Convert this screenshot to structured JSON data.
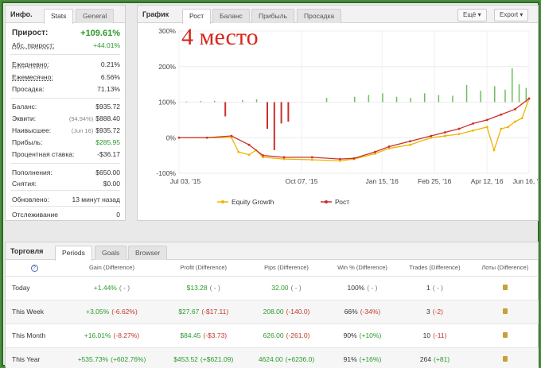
{
  "info": {
    "title": "Инфо.",
    "tabs": [
      "Stats",
      "General"
    ],
    "active_tab": "Stats",
    "rows": [
      {
        "label": "Прирост:",
        "value": "+109.61%",
        "style": "big-green",
        "underline": false
      },
      {
        "label": "Абс. прирост:",
        "value": "+44.01%",
        "style": "green",
        "underline": true
      },
      {
        "label": "Ежедневно:",
        "value": "0.21%",
        "style": "",
        "underline": true
      },
      {
        "label": "Ежемесячно:",
        "value": "6.56%",
        "style": "",
        "underline": true
      },
      {
        "label": "Просадка:",
        "value": "71.13%",
        "style": "",
        "underline": false
      },
      {
        "label": "Баланс:",
        "value": "$935.72",
        "style": "",
        "underline": false
      },
      {
        "label": "Эквити:",
        "value": "$888.40",
        "note": "(94.94%)",
        "style": "",
        "underline": false
      },
      {
        "label": "Наивысшее:",
        "value": "$935.72",
        "note": "(Jun 16)",
        "style": "",
        "underline": false
      },
      {
        "label": "Прибыль:",
        "value": "$285.95",
        "style": "green",
        "underline": false
      },
      {
        "label": "Процентная ставка:",
        "value": "-$36.17",
        "style": "",
        "underline": false
      },
      {
        "label": "Пополнения:",
        "value": "$650.00",
        "style": "",
        "underline": false
      },
      {
        "label": "Снятия:",
        "value": "$0.00",
        "style": "",
        "underline": false
      },
      {
        "label": "Обновлено:",
        "value": "13 минут назад",
        "style": "",
        "underline": false
      },
      {
        "label": "Отслеживание",
        "value": "0",
        "style": "",
        "underline": false
      }
    ]
  },
  "chart_panel": {
    "title": "График",
    "tabs": [
      "Рост",
      "Баланс",
      "Прибыль",
      "Просадка"
    ],
    "active_tab": "Рост",
    "menu_button": "Ещё",
    "export_button": "Export",
    "overlay_text": "4 место",
    "overlay_color": "#d9251c"
  },
  "chart_data": {
    "type": "line",
    "y_ticks": [
      "300%",
      "200%",
      "100%",
      "0%",
      "-100%"
    ],
    "y_tick_values": [
      300,
      200,
      100,
      0,
      -100
    ],
    "ylim": [
      -100,
      300
    ],
    "x_ticks": [
      "Jul 03, '15",
      "Oct 07, '15",
      "Jan 15, '16",
      "Feb 25, '16",
      "Apr 12, '16",
      "Jun 16, '16"
    ],
    "x_tick_positions": [
      0,
      0.35,
      0.58,
      0.73,
      0.88,
      1.0
    ],
    "series": [
      {
        "name": "Equity Growth",
        "color": "#f0b400",
        "x": [
          0,
          0.08,
          0.15,
          0.17,
          0.2,
          0.22,
          0.24,
          0.3,
          0.38,
          0.46,
          0.5,
          0.56,
          0.6,
          0.66,
          0.72,
          0.76,
          0.8,
          0.84,
          0.88,
          0.9,
          0.92,
          0.94,
          0.96,
          0.98,
          1.0
        ],
        "y": [
          0,
          0,
          0,
          -40,
          -48,
          -35,
          -55,
          -60,
          -62,
          -65,
          -60,
          -45,
          -30,
          -20,
          0,
          5,
          10,
          20,
          30,
          -35,
          25,
          30,
          45,
          55,
          110
        ]
      },
      {
        "name": "Рост",
        "color": "#c9302c",
        "x": [
          0,
          0.08,
          0.15,
          0.2,
          0.24,
          0.3,
          0.38,
          0.46,
          0.5,
          0.56,
          0.6,
          0.66,
          0.72,
          0.76,
          0.8,
          0.84,
          0.88,
          0.92,
          0.96,
          1.0
        ],
        "y": [
          0,
          0,
          5,
          -20,
          -50,
          -55,
          -55,
          -60,
          -58,
          -40,
          -25,
          -10,
          5,
          15,
          25,
          40,
          50,
          65,
          80,
          110
        ]
      },
      {
        "name": "daily-bars",
        "color": "#6cbf5c",
        "x": [
          0.02,
          0.06,
          0.1,
          0.18,
          0.22,
          0.42,
          0.5,
          0.54,
          0.58,
          0.62,
          0.66,
          0.7,
          0.74,
          0.78,
          0.82,
          0.86,
          0.9,
          0.93,
          0.95,
          0.97,
          0.99
        ],
        "y": [
          102,
          103,
          104,
          106,
          108,
          112,
          115,
          120,
          125,
          115,
          112,
          125,
          120,
          118,
          148,
          132,
          145,
          135,
          195,
          150,
          140
        ]
      }
    ],
    "neg_bars": {
      "color": "#c9302c",
      "x": [
        0.13,
        0.25,
        0.27,
        0.29,
        0.31
      ],
      "y": [
        60,
        25,
        -35,
        40,
        45
      ]
    }
  },
  "trade": {
    "title": "Торговля",
    "tabs": [
      "Periods",
      "Goals",
      "Browser"
    ],
    "active_tab": "Periods",
    "columns": [
      "Gain (Difference)",
      "Profit (Difference)",
      "Pips (Difference)",
      "Win % (Difference)",
      "Trades (Difference)",
      "Лоты (Difference)"
    ],
    "rows": [
      {
        "period": "Today",
        "gain": "+1.44%",
        "gain_diff": "( - )",
        "profit": "$13.28",
        "profit_diff": "( - )",
        "pips": "32.00",
        "pips_diff": "( - )",
        "win": "100%",
        "win_diff": "( - )",
        "trades": "1",
        "trades_diff": "( - )"
      },
      {
        "period": "This Week",
        "gain": "+3.05%",
        "gain_diff": "(-6.62%)",
        "profit": "$27.67",
        "profit_diff": "(-$17.11)",
        "pips": "208.00",
        "pips_diff": "(-140.0)",
        "win": "66%",
        "win_diff": "(-34%)",
        "trades": "3",
        "trades_diff": "(-2)"
      },
      {
        "period": "This Month",
        "gain": "+16.01%",
        "gain_diff": "(-8.27%)",
        "profit": "$84.45",
        "profit_diff": "(-$3.73)",
        "pips": "626.00",
        "pips_diff": "(-261.0)",
        "win": "90%",
        "win_diff": "(+10%)",
        "trades": "10",
        "trades_diff": "(-11)"
      },
      {
        "period": "This Year",
        "gain": "+535.73%",
        "gain_diff": "(+602.76%)",
        "profit": "$453.52",
        "profit_diff": "(+$621.09)",
        "pips": "4624.00",
        "pips_diff": "(+6236.0)",
        "win": "91%",
        "win_diff": "(+16%)",
        "trades": "264",
        "trades_diff": "(+81)"
      }
    ]
  }
}
